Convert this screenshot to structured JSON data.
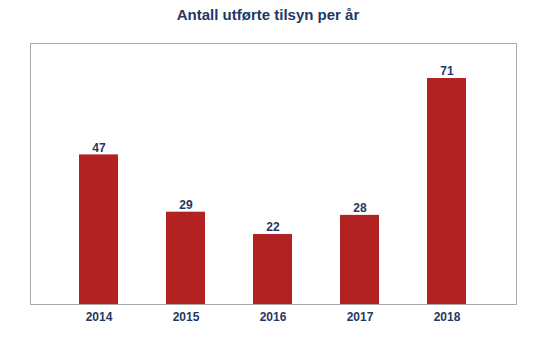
{
  "chart_data": {
    "type": "bar",
    "title": "Antall utførte tilsyn per år",
    "categories": [
      "2014",
      "2015",
      "2016",
      "2017",
      "2018"
    ],
    "values": [
      47,
      29,
      22,
      28,
      71
    ],
    "color": "#B22222",
    "ylim": [
      0,
      82
    ],
    "grid": false,
    "data_labels": true,
    "tick_labels": "x"
  }
}
